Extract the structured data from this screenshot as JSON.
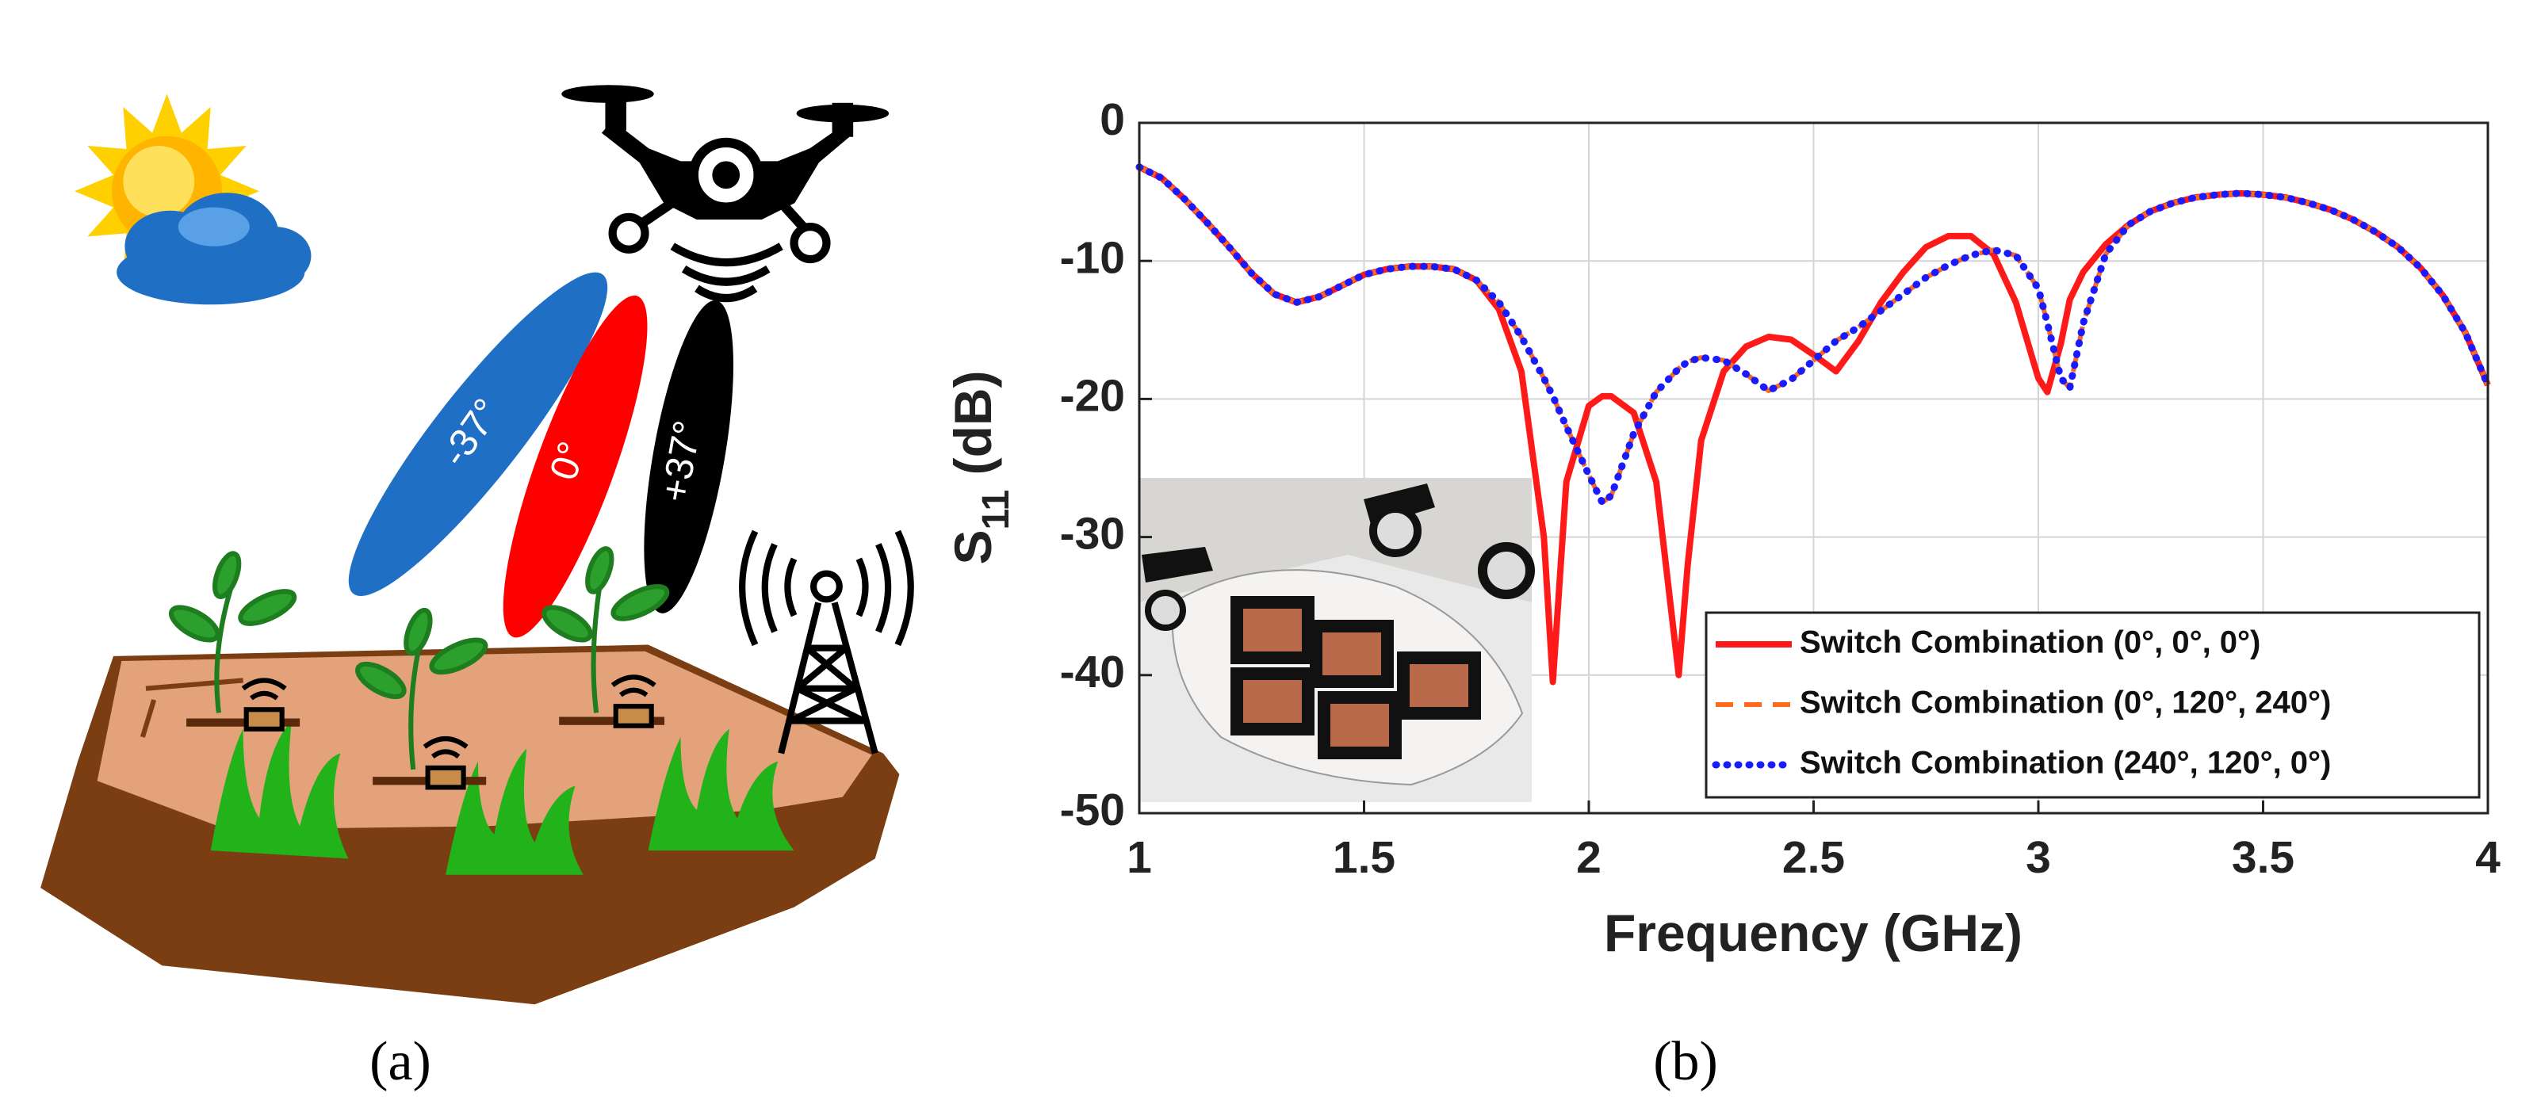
{
  "panels": {
    "a": "(a)",
    "b": "(b)"
  },
  "illustration": {
    "beam_labels": [
      "-37°",
      "0°",
      "+37°"
    ]
  },
  "chart_data": {
    "type": "line",
    "xlabel": "Frequency (GHz)",
    "ylabel": [
      "S",
      "11",
      " (dB)"
    ],
    "x": [
      1,
      1.05,
      1.1,
      1.15,
      1.2,
      1.25,
      1.3,
      1.35,
      1.4,
      1.45,
      1.5,
      1.55,
      1.6,
      1.65,
      1.7,
      1.75,
      1.8,
      1.85,
      1.9,
      1.92,
      1.95,
      2,
      2.03,
      2.05,
      2.1,
      2.15,
      2.2,
      2.22,
      2.25,
      2.3,
      2.35,
      2.4,
      2.45,
      2.5,
      2.55,
      2.6,
      2.65,
      2.7,
      2.75,
      2.8,
      2.85,
      2.9,
      2.95,
      3,
      3.02,
      3.05,
      3.07,
      3.1,
      3.15,
      3.2,
      3.25,
      3.3,
      3.35,
      3.4,
      3.45,
      3.5,
      3.55,
      3.6,
      3.65,
      3.7,
      3.75,
      3.8,
      3.85,
      3.9,
      3.95,
      4
    ],
    "series": [
      {
        "name": "Switch Combination (0°, 0°, 0°)",
        "color": "#ff1a1a",
        "style": "solid",
        "values": [
          -3.2,
          -4,
          -5.5,
          -7.2,
          -9,
          -10.9,
          -12.4,
          -13,
          -12.6,
          -11.8,
          -11,
          -10.6,
          -10.4,
          -10.4,
          -10.6,
          -11.4,
          -13.5,
          -18,
          -30,
          -40.5,
          -26,
          -20.5,
          -19.8,
          -19.8,
          -21,
          -26,
          -40,
          -32,
          -23,
          -18,
          -16.2,
          -15.5,
          -15.7,
          -16.8,
          -18,
          -15.8,
          -13,
          -10.8,
          -9,
          -8.2,
          -8.2,
          -9.5,
          -13,
          -18.5,
          -19.5,
          -16,
          -12.8,
          -10.8,
          -8.8,
          -7.4,
          -6.4,
          -5.8,
          -5.4,
          -5.2,
          -5.1,
          -5.2,
          -5.4,
          -5.8,
          -6.3,
          -7,
          -7.9,
          -9,
          -10.5,
          -12.5,
          -15.2,
          -19
        ]
      },
      {
        "name": "Switch Combination (0°, 120°, 240°)",
        "color": "#ff6a1a",
        "style": "dashed",
        "values": [
          -3.2,
          -4,
          -5.5,
          -7.2,
          -9,
          -10.9,
          -12.4,
          -13,
          -12.6,
          -11.8,
          -11,
          -10.6,
          -10.4,
          -10.4,
          -10.6,
          -11.4,
          -13,
          -15.5,
          -18.5,
          -19.8,
          -22,
          -25.5,
          -27.5,
          -27,
          -22.5,
          -19.5,
          -17.8,
          -17.3,
          -17,
          -17.2,
          -18.2,
          -19.4,
          -18.6,
          -17.2,
          -15.8,
          -14.8,
          -13.6,
          -12.4,
          -11.2,
          -10.3,
          -9.6,
          -9.2,
          -9.6,
          -12,
          -14.5,
          -18.5,
          -19.2,
          -14.5,
          -9.5,
          -7.4,
          -6.4,
          -5.8,
          -5.4,
          -5.2,
          -5.1,
          -5.2,
          -5.4,
          -5.8,
          -6.3,
          -7,
          -7.9,
          -9,
          -10.5,
          -12.5,
          -15.2,
          -19
        ]
      },
      {
        "name": "Switch Combination (240°, 120°, 0°)",
        "color": "#1a1aff",
        "style": "dotted",
        "values": [
          -3.2,
          -4,
          -5.5,
          -7.2,
          -9,
          -10.9,
          -12.4,
          -13,
          -12.6,
          -11.8,
          -11,
          -10.6,
          -10.4,
          -10.4,
          -10.6,
          -11.4,
          -13,
          -15.5,
          -18.5,
          -19.8,
          -22,
          -25.5,
          -27.5,
          -27,
          -22.5,
          -19.5,
          -17.8,
          -17.3,
          -17,
          -17.2,
          -18.2,
          -19.4,
          -18.6,
          -17.2,
          -15.8,
          -14.8,
          -13.6,
          -12.4,
          -11.2,
          -10.3,
          -9.6,
          -9.2,
          -9.6,
          -12,
          -14.5,
          -18.5,
          -19.2,
          -14.5,
          -9.5,
          -7.4,
          -6.4,
          -5.8,
          -5.4,
          -5.2,
          -5.1,
          -5.2,
          -5.4,
          -5.8,
          -6.3,
          -7,
          -7.9,
          -9,
          -10.5,
          -12.5,
          -15.2,
          -19
        ]
      }
    ],
    "xlim": [
      1,
      4
    ],
    "xticks": [
      1,
      1.5,
      2,
      2.5,
      3,
      3.5,
      4
    ],
    "ylim": [
      -50,
      0
    ],
    "yticks": [
      0,
      -10,
      -20,
      -30,
      -40,
      -50
    ],
    "grid": true,
    "legend": "lower right"
  }
}
